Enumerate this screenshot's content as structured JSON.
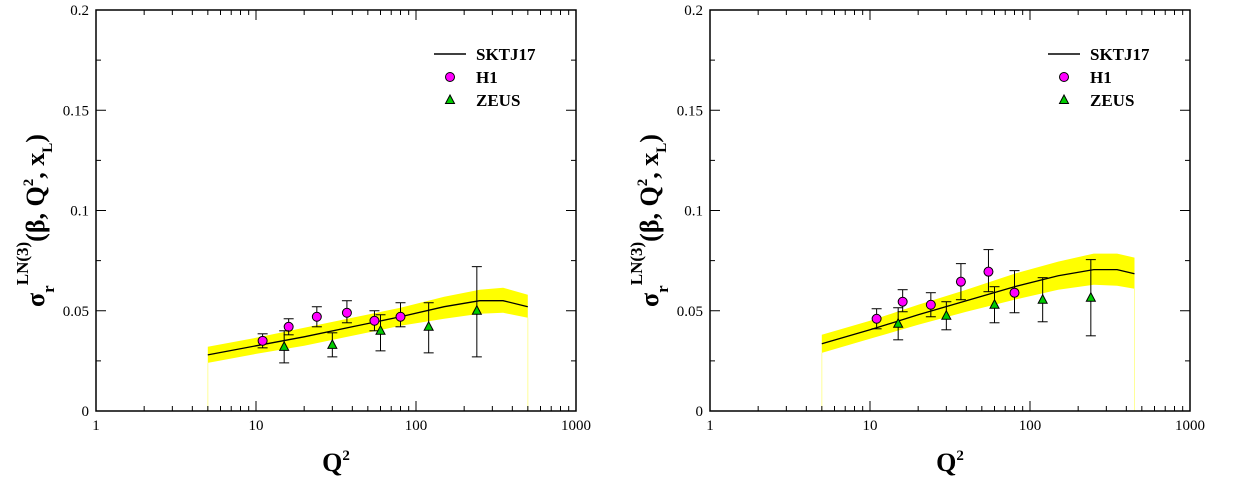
{
  "chart_data": [
    {
      "type": "line",
      "xlabel": "Q",
      "xlabel_sup": "2",
      "ylabel": "σ",
      "ylabel_sub": "r",
      "ylabel_sup": "LN(3)",
      "ylabel_args": "(β, Q",
      "ylabel_args_sup": "2",
      "ylabel_args_mid": ", x",
      "ylabel_args_sub": "L",
      "ylabel_args_end": ")",
      "x_scale": "log",
      "xlim": [
        1,
        1000
      ],
      "ylim": [
        0,
        0.2
      ],
      "x_ticks": [
        1,
        10,
        100,
        1000
      ],
      "x_tick_labels": [
        "1",
        "10",
        "100",
        "1000"
      ],
      "y_ticks": [
        0,
        0.05,
        0.1,
        0.15,
        0.2
      ],
      "y_tick_labels": [
        "0",
        "0.05",
        "0.1",
        "0.15",
        "0.2"
      ],
      "grid": false,
      "legend_position": "top-right",
      "colors": {
        "band": "#ffff00",
        "curve": "#000000",
        "h1": "#ff00ff",
        "zeus": "#00cc00"
      },
      "series": [
        {
          "name": "SKTJ17",
          "kind": "line-band",
          "x": [
            5,
            10,
            20,
            40,
            80,
            150,
            250,
            350,
            500
          ],
          "y": [
            0.028,
            0.0325,
            0.037,
            0.042,
            0.047,
            0.052,
            0.055,
            0.055,
            0.052
          ],
          "band_lower": [
            0.024,
            0.0285,
            0.0325,
            0.0375,
            0.0425,
            0.046,
            0.0485,
            0.049,
            0.0465
          ],
          "band_upper": [
            0.032,
            0.0365,
            0.0415,
            0.0465,
            0.0515,
            0.057,
            0.0605,
            0.0615,
            0.058
          ]
        },
        {
          "name": "H1",
          "kind": "scatter",
          "marker": "circle",
          "x": [
            11,
            16,
            24,
            37,
            55,
            80
          ],
          "y": [
            0.035,
            0.042,
            0.047,
            0.049,
            0.045,
            0.047
          ],
          "err_low": [
            0.0035,
            0.004,
            0.005,
            0.005,
            0.005,
            0.005
          ],
          "err_high": [
            0.0035,
            0.004,
            0.005,
            0.006,
            0.005,
            0.007
          ]
        },
        {
          "name": "ZEUS",
          "kind": "scatter",
          "marker": "triangle",
          "x": [
            15,
            30,
            60,
            120,
            240
          ],
          "y": [
            0.032,
            0.033,
            0.04,
            0.042,
            0.05
          ],
          "err_low": [
            0.008,
            0.006,
            0.01,
            0.013,
            0.023
          ],
          "err_high": [
            0.008,
            0.006,
            0.008,
            0.012,
            0.022
          ]
        }
      ]
    },
    {
      "type": "line",
      "xlabel": "Q",
      "xlabel_sup": "2",
      "ylabel": "σ",
      "ylabel_sub": "r",
      "ylabel_sup": "LN(3)",
      "ylabel_args": "(β, Q",
      "ylabel_args_sup": "2",
      "ylabel_args_mid": ", x",
      "ylabel_args_sub": "L",
      "ylabel_args_end": ")",
      "x_scale": "log",
      "xlim": [
        1,
        1000
      ],
      "ylim": [
        0,
        0.2
      ],
      "x_ticks": [
        1,
        10,
        100,
        1000
      ],
      "x_tick_labels": [
        "1",
        "10",
        "100",
        "1000"
      ],
      "y_ticks": [
        0,
        0.05,
        0.1,
        0.15,
        0.2
      ],
      "y_tick_labels": [
        "0",
        "0.05",
        "0.1",
        "0.15",
        "0.2"
      ],
      "grid": false,
      "legend_position": "top-right",
      "colors": {
        "band": "#ffff00",
        "curve": "#000000",
        "h1": "#ff00ff",
        "zeus": "#00cc00"
      },
      "series": [
        {
          "name": "SKTJ17",
          "kind": "line-band",
          "x": [
            5,
            10,
            20,
            40,
            80,
            150,
            250,
            350,
            450
          ],
          "y": [
            0.0335,
            0.0405,
            0.048,
            0.055,
            0.062,
            0.0675,
            0.0705,
            0.0705,
            0.0685
          ],
          "band_lower": [
            0.029,
            0.036,
            0.043,
            0.0495,
            0.0555,
            0.0605,
            0.063,
            0.0625,
            0.061
          ],
          "band_upper": [
            0.038,
            0.045,
            0.053,
            0.0605,
            0.0685,
            0.0745,
            0.0785,
            0.0785,
            0.0765
          ]
        },
        {
          "name": "H1",
          "kind": "scatter",
          "marker": "circle",
          "x": [
            11,
            16,
            24,
            37,
            55,
            80
          ],
          "y": [
            0.046,
            0.0545,
            0.053,
            0.0645,
            0.0695,
            0.059
          ],
          "err_low": [
            0.005,
            0.005,
            0.006,
            0.009,
            0.01,
            0.01
          ],
          "err_high": [
            0.005,
            0.006,
            0.006,
            0.009,
            0.011,
            0.011
          ]
        },
        {
          "name": "ZEUS",
          "kind": "scatter",
          "marker": "triangle",
          "x": [
            15,
            30,
            60,
            120,
            240
          ],
          "y": [
            0.0435,
            0.0475,
            0.053,
            0.0555,
            0.0565
          ],
          "err_low": [
            0.008,
            0.007,
            0.009,
            0.011,
            0.019
          ],
          "err_high": [
            0.008,
            0.007,
            0.009,
            0.011,
            0.019
          ]
        }
      ]
    }
  ]
}
